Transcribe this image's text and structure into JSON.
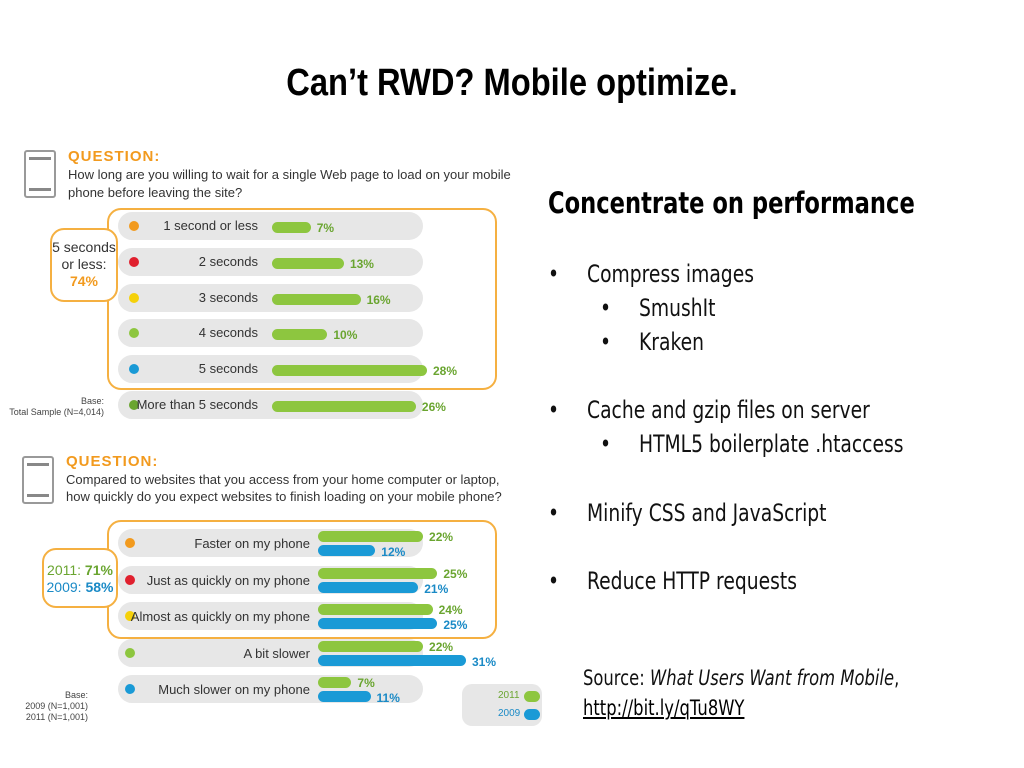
{
  "title": "Can’t RWD? Mobile optimize.",
  "right": {
    "heading": "Concentrate on performance",
    "bullet_glyph": "•",
    "items": [
      "Compress images",
      "SmushIt",
      "Kraken",
      "Cache and gzip files on server",
      "HTML5 boilerplate .htaccess",
      "Minify CSS and JavaScript",
      "Reduce HTTP requests"
    ],
    "source_prefix": "Source: ",
    "source_title": "What Users Want from Mobile",
    "source_suffix": ",",
    "source_link": "http://bit.ly/qTu8WY"
  },
  "q1": {
    "label": "QUESTION:",
    "text_line1": "How long are you willing to wait for a single Web page to load on your mobile",
    "text_line2": "phone before leaving the site?",
    "callout_line1": "5 seconds",
    "callout_line2": "or less:",
    "callout_value": "74%",
    "rows": [
      {
        "label": "1 second or less",
        "value": 7,
        "pct": "7%",
        "color": "#f29a1e"
      },
      {
        "label": "2 seconds",
        "value": 13,
        "pct": "13%",
        "color": "#e0202e"
      },
      {
        "label": "3 seconds",
        "value": 16,
        "pct": "16%",
        "color": "#f5d10a"
      },
      {
        "label": "4 seconds",
        "value": 10,
        "pct": "10%",
        "color": "#8dc63f"
      },
      {
        "label": "5 seconds",
        "value": 28,
        "pct": "28%",
        "color": "#1a9ad6"
      },
      {
        "label": "More than 5 seconds",
        "value": 26,
        "pct": "26%",
        "color": "#6aa530"
      }
    ],
    "base_line1": "Base:",
    "base_line2": "Total Sample (N=4,014)"
  },
  "q2": {
    "label": "QUESTION:",
    "text_line1": "Compared to websites that you access from your home computer or laptop,",
    "text_line2": "how quickly do you expect websites to finish loading on your mobile phone?",
    "callout_line1": "2011: 71%",
    "callout_line2": "2009: 58%",
    "rows": [
      {
        "label": "Faster on my phone",
        "v2011": 22,
        "p2011": "22%",
        "v2009": 12,
        "p2009": "12%",
        "color": "#f29a1e"
      },
      {
        "label": "Just as quickly on my phone",
        "v2011": 25,
        "p2011": "25%",
        "v2009": 21,
        "p2009": "21%",
        "color": "#e0202e"
      },
      {
        "label": "Almost as quickly on my phone",
        "v2011": 24,
        "p2011": "24%",
        "v2009": 25,
        "p2009": "25%",
        "color": "#f5d10a"
      },
      {
        "label": "A bit slower",
        "v2011": 22,
        "p2011": "22%",
        "v2009": 31,
        "p2009": "31%",
        "color": "#8dc63f"
      },
      {
        "label": "Much slower on my phone",
        "v2011": 7,
        "p2011": "7%",
        "v2009": 11,
        "p2009": "11%",
        "color": "#1a9ad6"
      }
    ],
    "base_line1": "Base:",
    "base_line2": "2009 (N=1,001)",
    "base_line3": "2011 (N=1,001)",
    "legend_2011": "2011",
    "legend_2009": "2009",
    "color_2011": "#8dc63f",
    "color_2009": "#1a9ad6"
  }
}
